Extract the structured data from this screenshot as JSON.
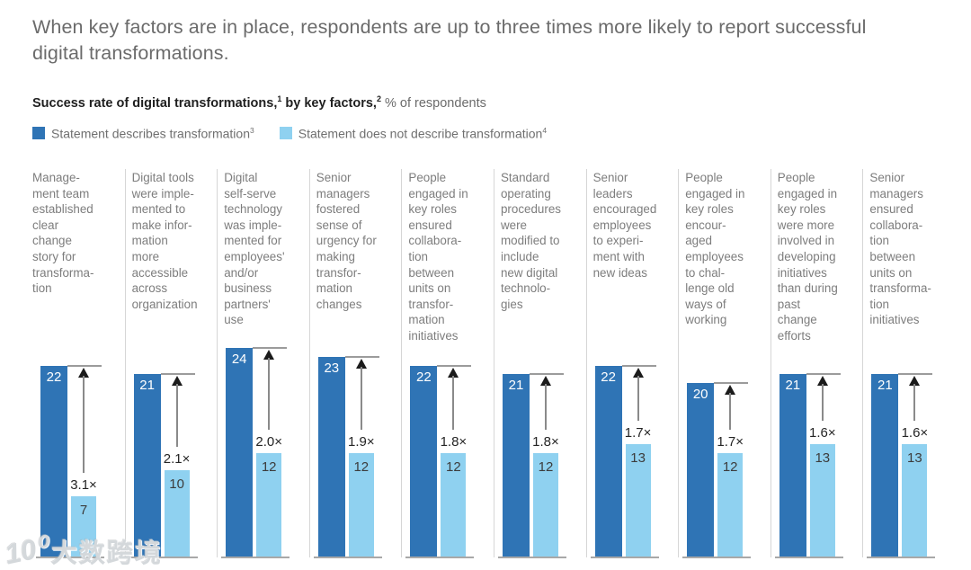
{
  "title": "When key factors are in place, respondents are up to three times more likely to report successful digital transformations.",
  "subtitle": {
    "bold_part_1": "Success rate of digital transformations,",
    "sup_1": "1",
    "bold_part_2": " by key factors,",
    "sup_2": "2",
    "regular_part": " % of respondents"
  },
  "legend": [
    {
      "label": "Statement describes transformation",
      "sup": "3",
      "color": "#2f74b5"
    },
    {
      "label": "Statement does not describe transformation",
      "sup": "4",
      "color": "#8fd1f0"
    }
  ],
  "watermark": {
    "logo": "10⁰",
    "text": "大数跨境"
  },
  "colors": {
    "bar_dark": "#2f74b5",
    "bar_light": "#8fd1f0",
    "title_text": "#6b6b6b",
    "label_text": "#7d7d7d"
  },
  "chart_data": {
    "type": "bar",
    "title": "Success rate of digital transformations, by key factors, % of respondents",
    "legend_position": "top",
    "grid": false,
    "ylim": [
      0,
      24
    ],
    "categories": [
      "Management team established clear change story for transformation",
      "Digital tools were implemented to make information more accessible across organization",
      "Digital self-serve technology was implemented for employees' and/or business partners' use",
      "Senior managers fostered sense of urgency for making transformation changes",
      "People engaged in key roles ensured collaboration between units on transformation initiatives",
      "Standard operating procedures were modified to include new digital technologies",
      "Senior leaders encouraged employees to experiment with new ideas",
      "People engaged in key roles encouraged employees to challenge old ways of working",
      "People engaged in key roles were more involved in developing initiatives than during past change efforts",
      "Senior managers ensured collaboration between units on transformation initiatives"
    ],
    "categories_display": [
      "Manage-\nment team\nestablished\nclear\nchange\nstory for\ntransforma-\ntion",
      "Digital tools\nwere imple-\nmented to\nmake infor-\nmation\nmore\naccessible\nacross\norganization",
      "Digital\nself-serve\ntechnology\nwas imple-\nmented for\nemployees'\nand/or\nbusiness\npartners'\nuse",
      "Senior\nmanagers\nfostered\nsense of\nurgency for\nmaking\ntransfor-\nmation\nchanges",
      "People\nengaged in\nkey roles\nensured\ncollabora-\ntion\nbetween\nunits on\ntransfor-\nmation\ninitiatives",
      "Standard\noperating\nprocedures\nwere\nmodified to\ninclude\nnew digital\ntechnolo-\ngies",
      "Senior\nleaders\nencouraged\nemployees\nto experi-\nment with\nnew ideas",
      "People\nengaged in\nkey roles\nencour-\naged\nemployees\nto chal-\nlenge old\nways of\nworking",
      "People\nengaged in\nkey roles\nwere more\ninvolved in\ndeveloping\ninitiatives\nthan during\npast\nchange\nefforts",
      "Senior\nmanagers\nensured\ncollabora-\ntion\nbetween\nunits on\ntransforma-\ntion\ninitiatives"
    ],
    "series": [
      {
        "name": "Statement describes transformation",
        "color": "#2f74b5",
        "values": [
          22,
          21,
          24,
          23,
          22,
          21,
          22,
          20,
          21,
          21
        ]
      },
      {
        "name": "Statement does not describe transformation",
        "color": "#8fd1f0",
        "values": [
          7,
          10,
          12,
          12,
          12,
          12,
          13,
          12,
          13,
          13
        ]
      }
    ],
    "multipliers": [
      "3.1×",
      "2.1×",
      "2.0×",
      "1.9×",
      "1.8×",
      "1.8×",
      "1.7×",
      "1.7×",
      "1.6×",
      "1.6×"
    ]
  }
}
